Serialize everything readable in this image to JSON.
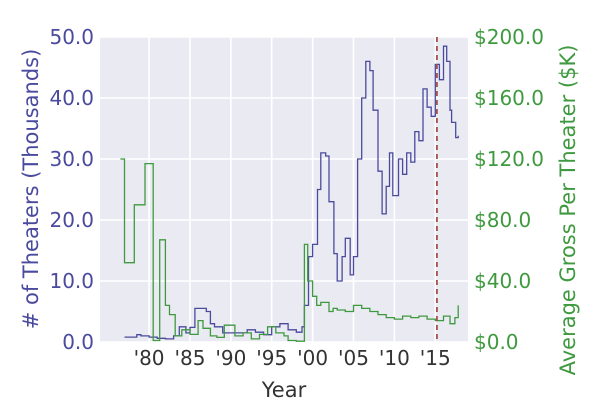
{
  "chart_data": {
    "type": "line",
    "xlabel": "Year",
    "ylabel_left": "# of Theaters (Thousands)",
    "ylabel_right": "Average Gross Per Theater ($K)",
    "xlim": [
      1974,
      2019
    ],
    "ylim_left": [
      0,
      50
    ],
    "ylim_right": [
      0,
      200
    ],
    "x_ticks": [
      {
        "value": 1980,
        "label": "'80"
      },
      {
        "value": 1985,
        "label": "'85"
      },
      {
        "value": 1990,
        "label": "'90"
      },
      {
        "value": 1995,
        "label": "'95"
      },
      {
        "value": 2000,
        "label": "'00"
      },
      {
        "value": 2005,
        "label": "'05"
      },
      {
        "value": 2010,
        "label": "'10"
      },
      {
        "value": 2015,
        "label": "'15"
      }
    ],
    "y_ticks_left": [
      {
        "value": 0,
        "label": "0.0"
      },
      {
        "value": 10,
        "label": "10.0"
      },
      {
        "value": 20,
        "label": "20.0"
      },
      {
        "value": 30,
        "label": "30.0"
      },
      {
        "value": 40,
        "label": "40.0"
      },
      {
        "value": 50,
        "label": "50.0"
      }
    ],
    "y_ticks_right": [
      {
        "value": 0,
        "label": "$0.0"
      },
      {
        "value": 40,
        "label": "$40.0"
      },
      {
        "value": 80,
        "label": "$80.0"
      },
      {
        "value": 120,
        "label": "$120.0"
      },
      {
        "value": 160,
        "label": "$160.0"
      },
      {
        "value": 200,
        "label": "$200.0"
      }
    ],
    "grid": true,
    "vline": {
      "x": 2015.2,
      "style": "dashed",
      "color": "#a0524b"
    },
    "colors": {
      "left_series": "#4a4a9e",
      "right_series": "#3f9a3f",
      "background": "#eaeaf2",
      "grid": "#ffffff"
    },
    "series": [
      {
        "axis": "left",
        "step": true,
        "points": [
          [
            1977,
            0.8
          ],
          [
            1978,
            0.8
          ],
          [
            1978.5,
            1.2
          ],
          [
            1979,
            1.0
          ],
          [
            1980,
            0.8
          ],
          [
            1981,
            0.6
          ],
          [
            1982,
            0.5
          ],
          [
            1983,
            1.0
          ],
          [
            1983.7,
            2.5
          ],
          [
            1984.5,
            1.5
          ],
          [
            1985,
            2.4
          ],
          [
            1985.6,
            5.5
          ],
          [
            1987,
            5.0
          ],
          [
            1987.5,
            3.0
          ],
          [
            1988,
            2.5
          ],
          [
            1989,
            1.5
          ],
          [
            1990,
            1.5
          ],
          [
            1991,
            1.5
          ],
          [
            1992,
            2.0
          ],
          [
            1993,
            1.6
          ],
          [
            1994,
            1.2
          ],
          [
            1995,
            2.5
          ],
          [
            1996,
            3.0
          ],
          [
            1997,
            2.0
          ],
          [
            1998,
            1.6
          ],
          [
            1998.7,
            2.5
          ],
          [
            1999,
            6.0
          ],
          [
            1999.5,
            14.0
          ],
          [
            2000,
            16.0
          ],
          [
            2000.6,
            25.0
          ],
          [
            2001,
            31.0
          ],
          [
            2001.6,
            30.5
          ],
          [
            2002,
            23.0
          ],
          [
            2002.6,
            14.5
          ],
          [
            2003,
            10.0
          ],
          [
            2003.6,
            14.0
          ],
          [
            2004,
            17.0
          ],
          [
            2004.6,
            11.0
          ],
          [
            2005,
            14.0
          ],
          [
            2005.5,
            30.0
          ],
          [
            2006,
            40.0
          ],
          [
            2006.5,
            46.0
          ],
          [
            2007,
            44.5
          ],
          [
            2007.4,
            38.0
          ],
          [
            2008,
            28.0
          ],
          [
            2008.5,
            21.0
          ],
          [
            2009,
            25.5
          ],
          [
            2009.4,
            31.0
          ],
          [
            2009.8,
            24.0
          ],
          [
            2010.5,
            30.0
          ],
          [
            2011,
            27.5
          ],
          [
            2011.5,
            31.0
          ],
          [
            2012,
            29.5
          ],
          [
            2012.5,
            34.5
          ],
          [
            2013,
            33.0
          ],
          [
            2013.5,
            41.5
          ],
          [
            2014,
            38.5
          ],
          [
            2014.5,
            37.0
          ],
          [
            2015,
            45.5
          ],
          [
            2015.5,
            43.0
          ],
          [
            2016,
            48.5
          ],
          [
            2016.4,
            46.0
          ],
          [
            2016.8,
            38.0
          ],
          [
            2017,
            36.0
          ],
          [
            2017.5,
            33.5
          ],
          [
            2017.8,
            33.8
          ]
        ]
      },
      {
        "axis": "right",
        "step": true,
        "points": [
          [
            1976.5,
            120
          ],
          [
            1977,
            52
          ],
          [
            1978.2,
            90
          ],
          [
            1979.5,
            117
          ],
          [
            1980.5,
            1
          ],
          [
            1981.3,
            67
          ],
          [
            1982,
            24
          ],
          [
            1982.5,
            18
          ],
          [
            1983.2,
            4
          ],
          [
            1984,
            8
          ],
          [
            1985,
            5
          ],
          [
            1986,
            14
          ],
          [
            1986.6,
            9
          ],
          [
            1987.5,
            4
          ],
          [
            1988.3,
            3
          ],
          [
            1989.2,
            11
          ],
          [
            1990.5,
            4
          ],
          [
            1991.5,
            6
          ],
          [
            1992.5,
            2
          ],
          [
            1993.5,
            5
          ],
          [
            1994.5,
            10
          ],
          [
            1995.5,
            6
          ],
          [
            1996.5,
            4
          ],
          [
            1997,
            1
          ],
          [
            1998,
            0.5
          ],
          [
            1999,
            64
          ],
          [
            1999.4,
            40
          ],
          [
            2000,
            30
          ],
          [
            2000.5,
            24
          ],
          [
            2001,
            26
          ],
          [
            2002,
            20
          ],
          [
            2002.5,
            22
          ],
          [
            2003,
            21
          ],
          [
            2004,
            20
          ],
          [
            2005,
            24
          ],
          [
            2006,
            22
          ],
          [
            2007,
            20
          ],
          [
            2008,
            18
          ],
          [
            2009,
            16
          ],
          [
            2010,
            15
          ],
          [
            2011,
            17
          ],
          [
            2012,
            16
          ],
          [
            2013,
            17
          ],
          [
            2014,
            15
          ],
          [
            2015,
            14
          ],
          [
            2016,
            17
          ],
          [
            2016.8,
            12
          ],
          [
            2017.4,
            16
          ],
          [
            2017.8,
            24
          ]
        ]
      }
    ]
  }
}
